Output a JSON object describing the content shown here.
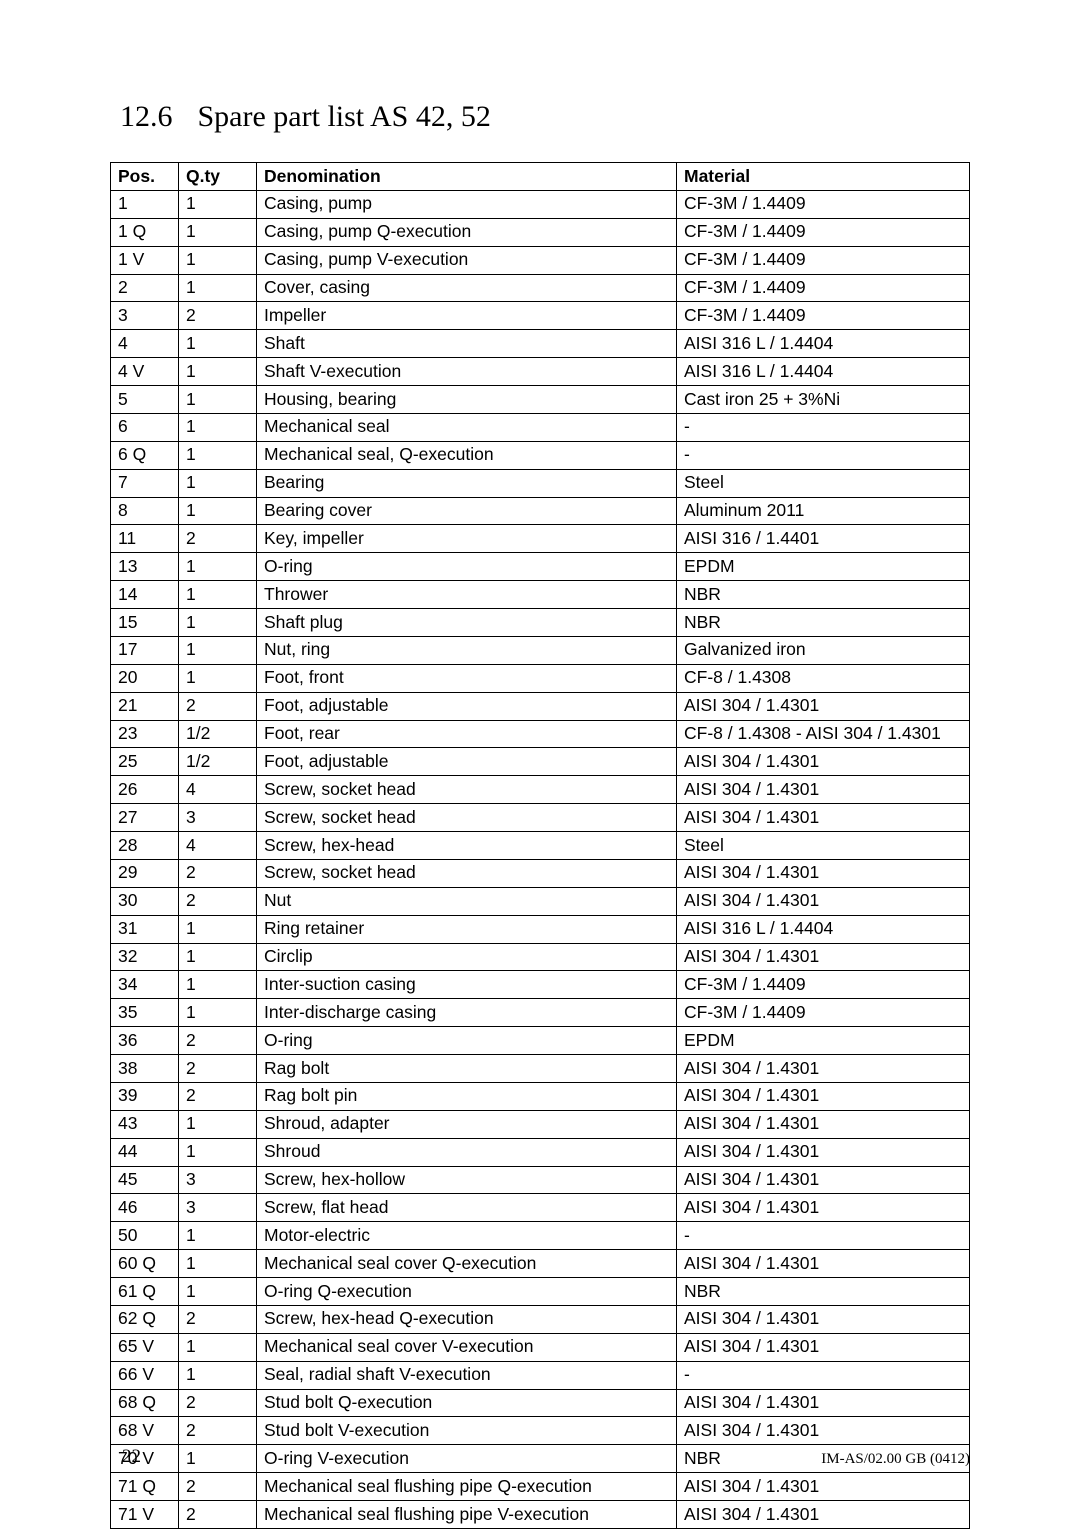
{
  "heading": {
    "number": "12.6",
    "title": "Spare part list AS 42, 52"
  },
  "table": {
    "columns": [
      "Pos.",
      "Q.ty",
      "Denomination",
      "Material"
    ],
    "rows": [
      [
        "1",
        "1",
        "Casing, pump",
        "CF-3M / 1.4409"
      ],
      [
        "1 Q",
        "1",
        "Casing, pump Q-execution",
        "CF-3M / 1.4409"
      ],
      [
        "1 V",
        "1",
        "Casing, pump V-execution",
        "CF-3M / 1.4409"
      ],
      [
        "2",
        "1",
        "Cover, casing",
        "CF-3M / 1.4409"
      ],
      [
        "3",
        "2",
        "Impeller",
        "CF-3M / 1.4409"
      ],
      [
        "4",
        "1",
        "Shaft",
        "AISI 316 L / 1.4404"
      ],
      [
        "4 V",
        "1",
        "Shaft V-execution",
        "AISI 316 L / 1.4404"
      ],
      [
        "5",
        "1",
        "Housing, bearing",
        "Cast iron 25 + 3%Ni"
      ],
      [
        "6",
        "1",
        "Mechanical seal",
        "-"
      ],
      [
        "6 Q",
        "1",
        "Mechanical seal, Q-execution",
        "-"
      ],
      [
        "7",
        "1",
        "Bearing",
        "Steel"
      ],
      [
        "8",
        "1",
        "Bearing cover",
        "Aluminum 2011"
      ],
      [
        "11",
        "2",
        "Key, impeller",
        "AISI 316 / 1.4401"
      ],
      [
        "13",
        "1",
        "O-ring",
        "EPDM"
      ],
      [
        "14",
        "1",
        "Thrower",
        "NBR"
      ],
      [
        "15",
        "1",
        "Shaft plug",
        "NBR"
      ],
      [
        "17",
        "1",
        "Nut, ring",
        "Galvanized iron"
      ],
      [
        "20",
        "1",
        "Foot, front",
        "CF-8 / 1.4308"
      ],
      [
        "21",
        "2",
        "Foot, adjustable",
        "AISI 304 / 1.4301"
      ],
      [
        "23",
        "1/2",
        "Foot, rear",
        "CF-8 / 1.4308 - AISI 304 / 1.4301"
      ],
      [
        "25",
        "1/2",
        "Foot, adjustable",
        "AISI 304 / 1.4301"
      ],
      [
        "26",
        "4",
        "Screw, socket head",
        "AISI 304 / 1.4301"
      ],
      [
        "27",
        "3",
        "Screw, socket head",
        "AISI 304 / 1.4301"
      ],
      [
        "28",
        "4",
        "Screw, hex-head",
        "Steel"
      ],
      [
        "29",
        "2",
        "Screw, socket head",
        "AISI 304 / 1.4301"
      ],
      [
        "30",
        "2",
        "Nut",
        "AISI 304 / 1.4301"
      ],
      [
        "31",
        "1",
        "Ring retainer",
        "AISI 316 L / 1.4404"
      ],
      [
        "32",
        "1",
        "Circlip",
        "AISI 304 / 1.4301"
      ],
      [
        "34",
        "1",
        "Inter-suction casing",
        "CF-3M / 1.4409"
      ],
      [
        "35",
        "1",
        "Inter-discharge casing",
        "CF-3M / 1.4409"
      ],
      [
        "36",
        "2",
        "O-ring",
        "EPDM"
      ],
      [
        "38",
        "2",
        "Rag bolt",
        "AISI 304 / 1.4301"
      ],
      [
        "39",
        "2",
        "Rag bolt pin",
        "AISI 304 / 1.4301"
      ],
      [
        "43",
        "1",
        "Shroud, adapter",
        "AISI 304 / 1.4301"
      ],
      [
        "44",
        "1",
        "Shroud",
        "AISI 304 / 1.4301"
      ],
      [
        "45",
        "3",
        "Screw, hex-hollow",
        "AISI 304 / 1.4301"
      ],
      [
        "46",
        "3",
        "Screw, flat head",
        "AISI 304 / 1.4301"
      ],
      [
        "50",
        "1",
        "Motor-electric",
        "-"
      ],
      [
        "60 Q",
        "1",
        "Mechanical seal cover Q-execution",
        "AISI 304 / 1.4301"
      ],
      [
        "61 Q",
        "1",
        "O-ring Q-execution",
        "NBR"
      ],
      [
        "62 Q",
        "2",
        "Screw, hex-head Q-execution",
        "AISI 304 / 1.4301"
      ],
      [
        "65 V",
        "1",
        "Mechanical seal cover V-execution",
        "AISI 304 / 1.4301"
      ],
      [
        "66 V",
        "1",
        "Seal, radial shaft V-execution",
        "-"
      ],
      [
        "68 Q",
        "2",
        "Stud bolt Q-execution",
        "AISI 304 / 1.4301"
      ],
      [
        "68 V",
        "2",
        "Stud bolt V-execution",
        "AISI 304 / 1.4301"
      ],
      [
        "70 V",
        "1",
        "O-ring V-execution",
        "NBR"
      ],
      [
        "71 Q",
        "2",
        "Mechanical seal flushing pipe Q-execution",
        "AISI 304 / 1.4301"
      ],
      [
        "71 V",
        "2",
        "Mechanical seal flushing pipe V-execution",
        "AISI 304 / 1.4301"
      ]
    ]
  },
  "footer": {
    "page": "22",
    "docref": "IM-AS/02.00 GB (0412)"
  }
}
